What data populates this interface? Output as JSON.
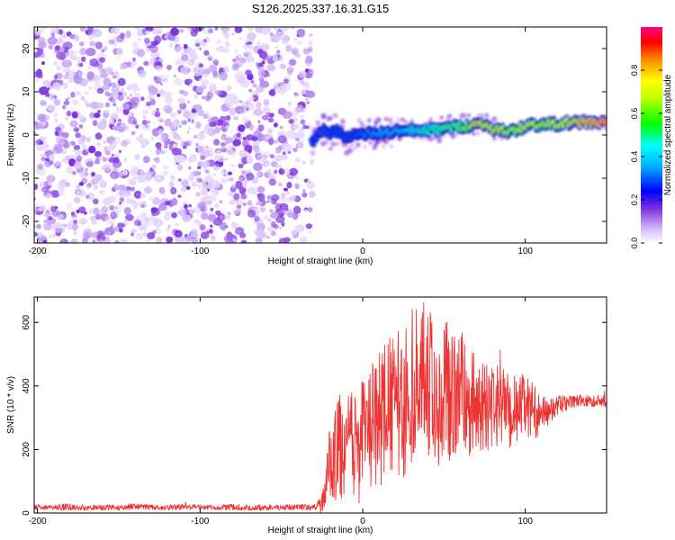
{
  "title": "S126.2025.337.16.31.G15",
  "colors": {
    "snr_line": "#ee3333",
    "noise_purple": "#7a2fe0",
    "background": "#ffffff",
    "axis": "#000000"
  },
  "chart_data": [
    {
      "type": "heatmap",
      "title": "S126.2025.337.16.31.G15",
      "xlabel": "Height of straight line (km)",
      "ylabel": "Frequency (Hz)",
      "xlim": [
        -202,
        150
      ],
      "ylim": [
        -25,
        25
      ],
      "x_ticks": [
        -200,
        -100,
        0,
        100
      ],
      "x_tick_labels": [
        "-200",
        "-100",
        "0",
        "100"
      ],
      "y_ticks": [
        -20,
        -10,
        0,
        10,
        20
      ],
      "y_tick_labels": [
        "-20",
        "-10",
        "0",
        "10",
        "20"
      ],
      "noise_region_x": [
        -202,
        -31
      ],
      "signal_start_x": -31,
      "ridge": {
        "x": [
          -31,
          -25,
          -20,
          -15,
          -10,
          -5,
          0,
          5,
          10,
          15,
          20,
          25,
          30,
          35,
          40,
          45,
          50,
          55,
          60,
          65,
          70,
          75,
          80,
          85,
          90,
          95,
          100,
          105,
          110,
          115,
          120,
          125,
          130,
          135,
          140,
          145,
          150
        ],
        "y": [
          -1.5,
          1.0,
          0.5,
          1.0,
          -0.5,
          0.0,
          0.2,
          0.3,
          0.5,
          0.5,
          0.8,
          0.8,
          1.0,
          1.0,
          1.2,
          1.2,
          1.5,
          1.8,
          2.0,
          2.2,
          2.5,
          2.5,
          1.5,
          1.0,
          0.8,
          1.2,
          2.0,
          2.5,
          2.2,
          2.5,
          2.5,
          2.8,
          2.8,
          3.0,
          3.0,
          2.8,
          2.8
        ],
        "amplitude": [
          0.25,
          0.2,
          0.22,
          0.25,
          0.22,
          0.25,
          0.3,
          0.35,
          0.38,
          0.4,
          0.4,
          0.42,
          0.45,
          0.5,
          0.55,
          0.55,
          0.6,
          0.6,
          0.62,
          0.65,
          0.85,
          0.75,
          0.8,
          0.75,
          0.7,
          0.7,
          0.75,
          0.75,
          0.7,
          0.72,
          0.75,
          0.75,
          0.8,
          0.85,
          0.9,
          0.95,
          1.0
        ]
      },
      "colorbar": {
        "label": "Normalized spectral amplitude",
        "range": [
          0,
          1
        ],
        "ticks": [
          0.0,
          0.2,
          0.4,
          0.6,
          0.8
        ],
        "tick_labels": [
          "0.0",
          "0.2",
          "0.4",
          "0.6",
          "0.8"
        ]
      }
    },
    {
      "type": "line",
      "xlabel": "Height of straight line (km)",
      "ylabel": "SNR (10 * v/v)",
      "xlim": [
        -202,
        150
      ],
      "ylim": [
        0,
        680
      ],
      "x_ticks": [
        -200,
        -100,
        0,
        100
      ],
      "x_tick_labels": [
        "-200",
        "-100",
        "0",
        "100"
      ],
      "y_ticks": [
        0,
        200,
        400,
        600
      ],
      "y_tick_labels": [
        "0",
        "200",
        "400",
        "600"
      ],
      "series": [
        {
          "values_note": "",
          "x": [
            -202,
            -190,
            -180,
            -170,
            -160,
            -150,
            -140,
            -130,
            -120,
            -110,
            -100,
            -90,
            -80,
            -70,
            -60,
            -50,
            -40,
            -30,
            -25,
            -20,
            -15,
            -10,
            -5,
            0,
            5,
            10,
            15,
            20,
            25,
            30,
            35,
            40,
            45,
            50,
            55,
            60,
            65,
            70,
            75,
            80,
            85,
            90,
            95,
            100,
            105,
            110,
            115,
            120,
            125,
            130,
            135,
            140,
            145,
            150
          ],
          "y": [
            18,
            17,
            20,
            16,
            18,
            17,
            22,
            18,
            16,
            20,
            18,
            17,
            19,
            16,
            18,
            17,
            18,
            17,
            30,
            160,
            200,
            220,
            200,
            230,
            260,
            300,
            330,
            350,
            330,
            400,
            420,
            410,
            380,
            370,
            390,
            380,
            360,
            340,
            330,
            330,
            340,
            320,
            330,
            340,
            320,
            310,
            320,
            340,
            345,
            350,
            355,
            350,
            355,
            350
          ],
          "amplitude": [
            10,
            8,
            12,
            8,
            10,
            8,
            10,
            8,
            8,
            10,
            8,
            8,
            10,
            8,
            10,
            8,
            10,
            8,
            30,
            120,
            170,
            170,
            180,
            190,
            200,
            220,
            220,
            230,
            240,
            250,
            250,
            260,
            240,
            230,
            220,
            200,
            190,
            160,
            140,
            130,
            130,
            120,
            110,
            100,
            90,
            60,
            40,
            30,
            25,
            20,
            20,
            18,
            18,
            18
          ]
        }
      ]
    }
  ]
}
